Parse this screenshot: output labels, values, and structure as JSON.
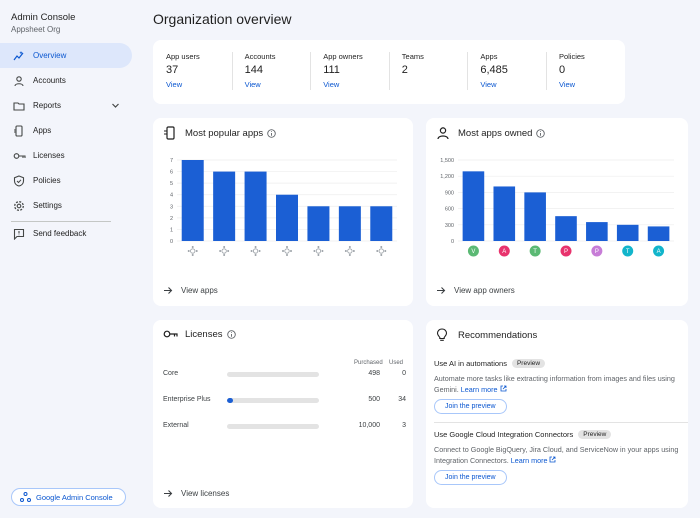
{
  "brand": {
    "title": "Admin Console",
    "org": "Appsheet Org"
  },
  "nav": [
    {
      "label": "Overview",
      "icon": "sparkle-chart-icon",
      "active": true
    },
    {
      "label": "Accounts",
      "icon": "person-icon"
    },
    {
      "label": "Reports",
      "icon": "folder-icon",
      "expandable": true
    },
    {
      "label": "Apps",
      "icon": "phone-apps-icon"
    },
    {
      "label": "Licenses",
      "icon": "key-icon"
    },
    {
      "label": "Policies",
      "icon": "shield-icon"
    },
    {
      "label": "Settings",
      "icon": "gear-icon"
    }
  ],
  "feedback": {
    "label": "Send feedback",
    "icon": "feedback-icon"
  },
  "admin_console_button": {
    "label": "Google Admin Console"
  },
  "page_title": "Organization overview",
  "stats": [
    {
      "label": "App users",
      "value": "37",
      "link": "View"
    },
    {
      "label": "Accounts",
      "value": "144",
      "link": "View"
    },
    {
      "label": "App owners",
      "value": "111",
      "link": "View"
    },
    {
      "label": "Teams",
      "value": "2",
      "link": ""
    },
    {
      "label": "Apps",
      "value": "6,485",
      "link": "View"
    },
    {
      "label": "Policies",
      "value": "0",
      "link": "View"
    }
  ],
  "popular_apps": {
    "title": "Most popular apps",
    "footer": "View apps"
  },
  "apps_owned": {
    "title": "Most apps owned",
    "footer": "View app owners"
  },
  "licenses": {
    "title": "Licenses",
    "col_purchased": "Purchased",
    "col_used": "Used",
    "rows": [
      {
        "name": "Core",
        "purchased": "498",
        "used": "0",
        "fraction": 0
      },
      {
        "name": "Enterprise Plus",
        "purchased": "500",
        "used": "34",
        "fraction": 0.068
      },
      {
        "name": "External",
        "purchased": "10,000",
        "used": "3",
        "fraction": 0.0003
      }
    ],
    "footer": "View licenses"
  },
  "recommendations": {
    "title": "Recommendations",
    "items": [
      {
        "title": "Use AI in automations",
        "badge": "Preview",
        "desc": "Automate more tasks like extracting information from images and files using Gemini.",
        "learn_more": "Learn more",
        "button": "Join the preview"
      },
      {
        "title": "Use Google Cloud Integration Connectors",
        "badge": "Preview",
        "desc": "Connect to Google BigQuery, Jira Cloud, and ServiceNow in your apps using Integration Connectors.",
        "learn_more": "Learn more",
        "button": "Join the preview"
      }
    ]
  },
  "chart_data": [
    {
      "type": "bar",
      "categories": [
        "",
        "",
        "",
        "",
        "",
        "",
        ""
      ],
      "values": [
        7,
        6,
        6,
        4,
        3,
        3,
        3
      ],
      "yticks": [
        "0",
        "1",
        "2",
        "3",
        "4",
        "5",
        "6",
        "7"
      ],
      "ylim": [
        0,
        7
      ],
      "bar_color": "#1b5fd4",
      "grid": true
    },
    {
      "type": "bar",
      "categories": [
        "V",
        "A",
        "T",
        "P",
        "P",
        "T",
        "A"
      ],
      "category_colors": [
        "#5bb974",
        "#e8336d",
        "#5bb974",
        "#e8336d",
        "#c77dd7",
        "#12b5cb",
        "#12b5cb"
      ],
      "values": [
        1290,
        1010,
        900,
        460,
        350,
        300,
        270
      ],
      "yticks": [
        "0",
        "300",
        "600",
        "900",
        "1,200",
        "1,500"
      ],
      "ylim": [
        0,
        1500
      ],
      "bar_color": "#1b5fd4",
      "grid": true
    }
  ]
}
